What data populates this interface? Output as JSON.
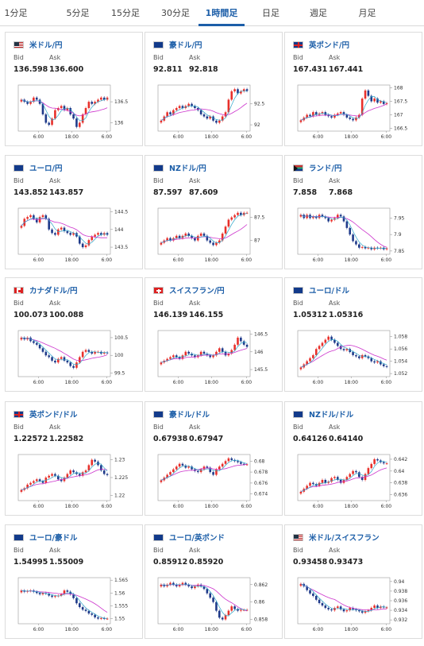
{
  "tabs": [
    {
      "label": "1分足",
      "active": false
    },
    {
      "label": "5分足",
      "active": false
    },
    {
      "label": "15分足",
      "active": false
    },
    {
      "label": "30分足",
      "active": false
    },
    {
      "label": "1時間足",
      "active": true
    },
    {
      "label": "日足",
      "active": false
    },
    {
      "label": "週足",
      "active": false
    },
    {
      "label": "月足",
      "active": false
    }
  ],
  "colors": {
    "accent": "#1c5ea8",
    "candle_up": "#e8302b",
    "candle_down": "#1f3a8a",
    "ma_short": "#2ea6c9",
    "ma_long": "#cc33cc",
    "volume_bar": "#888888"
  },
  "common": {
    "bid_label": "Bid",
    "ask_label": "Ask"
  },
  "cards": [
    {
      "pair": "米ドル/円",
      "flag": "us-flag",
      "bid": "136.598",
      "ask": "136.600",
      "chart_data": {
        "type": "candlestick",
        "x_ticks": [
          "6:00",
          "18:00",
          "6:00"
        ],
        "y_ticks": [
          "136.5",
          "136"
        ],
        "y_range": [
          135.8,
          136.9
        ],
        "closes": [
          136.55,
          136.5,
          136.45,
          136.5,
          136.6,
          136.55,
          136.45,
          136.2,
          136.0,
          135.95,
          136.1,
          136.3,
          136.35,
          136.4,
          136.3,
          136.35,
          136.2,
          136.1,
          135.9,
          136.0,
          136.2,
          136.35,
          136.5,
          136.45,
          136.5,
          136.55,
          136.6,
          136.55,
          136.6
        ]
      }
    },
    {
      "pair": "豪ドル/円",
      "flag": "au-flag",
      "bid": "92.811",
      "ask": "92.818",
      "chart_data": {
        "type": "candlestick",
        "x_ticks": [
          "6:00",
          "18:00",
          "6:00"
        ],
        "y_ticks": [
          "92.5",
          "92"
        ],
        "y_range": [
          91.85,
          92.95
        ],
        "closes": [
          92.1,
          92.2,
          92.3,
          92.25,
          92.35,
          92.4,
          92.45,
          92.4,
          92.45,
          92.5,
          92.45,
          92.4,
          92.35,
          92.25,
          92.2,
          92.15,
          92.2,
          92.1,
          92.05,
          92.1,
          92.2,
          92.3,
          92.6,
          92.8,
          92.85,
          92.75,
          92.8,
          92.85,
          92.81
        ]
      }
    },
    {
      "pair": "英ポンド/円",
      "flag": "uk-flag",
      "bid": "167.431",
      "ask": "167.441",
      "chart_data": {
        "type": "candlestick",
        "x_ticks": [
          "6:00",
          "18:00",
          "6:00"
        ],
        "y_ticks": [
          "168",
          "167.5",
          "167",
          "166.5"
        ],
        "y_range": [
          166.4,
          168.1
        ],
        "closes": [
          166.8,
          166.9,
          167.0,
          166.95,
          167.1,
          167.0,
          167.05,
          167.1,
          167.0,
          166.95,
          166.9,
          167.0,
          167.05,
          167.1,
          167.0,
          166.9,
          166.85,
          166.8,
          166.9,
          167.0,
          167.6,
          167.9,
          167.7,
          167.5,
          167.6,
          167.45,
          167.5,
          167.4,
          167.43
        ]
      }
    },
    {
      "pair": "ユーロ/円",
      "flag": "eu-flag",
      "bid": "143.852",
      "ask": "143.857",
      "chart_data": {
        "type": "candlestick",
        "x_ticks": [
          "6:00",
          "18:00",
          "6:00"
        ],
        "y_ticks": [
          "144.5",
          "144",
          "143.5"
        ],
        "y_range": [
          143.3,
          144.6
        ],
        "closes": [
          144.1,
          144.3,
          144.35,
          144.4,
          144.3,
          144.2,
          144.35,
          144.4,
          144.3,
          144.0,
          143.9,
          143.85,
          144.0,
          144.05,
          143.95,
          143.9,
          143.85,
          143.9,
          143.8,
          143.6,
          143.5,
          143.55,
          143.7,
          143.8,
          143.85,
          143.9,
          143.85,
          143.9,
          143.85
        ]
      }
    },
    {
      "pair": "NZドル/円",
      "flag": "nz-flag",
      "bid": "87.597",
      "ask": "87.609",
      "chart_data": {
        "type": "candlestick",
        "x_ticks": [
          "6:00",
          "18:00",
          "6:00"
        ],
        "y_ticks": [
          "87.5",
          "87"
        ],
        "y_range": [
          86.7,
          87.7
        ],
        "closes": [
          86.95,
          87.0,
          87.05,
          87.0,
          87.05,
          87.1,
          87.05,
          87.1,
          87.15,
          87.1,
          87.05,
          87.0,
          87.1,
          87.15,
          87.1,
          87.0,
          86.95,
          86.9,
          86.95,
          87.0,
          87.15,
          87.3,
          87.45,
          87.5,
          87.55,
          87.6,
          87.55,
          87.6,
          87.6
        ]
      }
    },
    {
      "pair": "ランド/円",
      "flag": "za-flag",
      "bid": "7.858",
      "ask": "7.868",
      "chart_data": {
        "type": "candlestick",
        "x_ticks": [
          "6:00",
          "18:00",
          "6:00"
        ],
        "y_ticks": [
          "7.95",
          "7.9",
          "7.85"
        ],
        "y_range": [
          7.84,
          7.98
        ],
        "closes": [
          7.96,
          7.95,
          7.96,
          7.95,
          7.955,
          7.95,
          7.96,
          7.955,
          7.95,
          7.94,
          7.945,
          7.95,
          7.96,
          7.955,
          7.94,
          7.92,
          7.9,
          7.88,
          7.87,
          7.86,
          7.862,
          7.858,
          7.86,
          7.855,
          7.86,
          7.858,
          7.86,
          7.855,
          7.858
        ]
      }
    },
    {
      "pair": "カナダドル/円",
      "flag": "ca-flag",
      "bid": "100.073",
      "ask": "100.088",
      "chart_data": {
        "type": "candlestick",
        "x_ticks": [
          "6:00",
          "18:00",
          "6:00"
        ],
        "y_ticks": [
          "100.5",
          "100",
          "99.5"
        ],
        "y_range": [
          99.4,
          100.7
        ],
        "closes": [
          100.5,
          100.45,
          100.5,
          100.4,
          100.35,
          100.3,
          100.2,
          100.1,
          100.0,
          99.95,
          99.85,
          99.8,
          99.9,
          99.95,
          99.85,
          99.8,
          99.7,
          99.65,
          99.8,
          99.95,
          100.1,
          100.15,
          100.1,
          100.05,
          100.1,
          100.1,
          100.05,
          100.08,
          100.07
        ]
      }
    },
    {
      "pair": "スイスフラン/円",
      "flag": "ch-flag",
      "bid": "146.139",
      "ask": "146.155",
      "chart_data": {
        "type": "candlestick",
        "x_ticks": [
          "6:00",
          "18:00",
          "6:00"
        ],
        "y_ticks": [
          "146.5",
          "146",
          "145.5"
        ],
        "y_range": [
          145.3,
          146.6
        ],
        "closes": [
          145.7,
          145.75,
          145.8,
          145.85,
          145.9,
          145.85,
          145.8,
          145.9,
          146.0,
          145.95,
          145.9,
          145.85,
          145.9,
          146.0,
          145.95,
          145.9,
          145.85,
          145.9,
          146.0,
          146.1,
          146.0,
          145.9,
          145.95,
          146.05,
          146.2,
          146.4,
          146.3,
          146.2,
          146.14
        ]
      }
    },
    {
      "pair": "ユーロ/ドル",
      "flag": "eu-flag-2",
      "bid": "1.05312",
      "ask": "1.05316",
      "chart_data": {
        "type": "candlestick",
        "x_ticks": [
          "6:00",
          "18:00",
          "6:00"
        ],
        "y_ticks": [
          "1.058",
          "1.056",
          "1.054",
          "1.052"
        ],
        "y_range": [
          1.0515,
          1.059
        ],
        "closes": [
          1.053,
          1.0535,
          1.054,
          1.0545,
          1.055,
          1.056,
          1.0565,
          1.057,
          1.0575,
          1.058,
          1.0575,
          1.057,
          1.0565,
          1.056,
          1.0558,
          1.056,
          1.0555,
          1.055,
          1.0548,
          1.0545,
          1.055,
          1.0548,
          1.0545,
          1.054,
          1.0538,
          1.054,
          1.0535,
          1.0532,
          1.0531
        ]
      }
    },
    {
      "pair": "英ポンド/ドル",
      "flag": "uk-flag-2",
      "bid": "1.22572",
      "ask": "1.22582",
      "chart_data": {
        "type": "candlestick",
        "x_ticks": [
          "6:00",
          "18:00",
          "6:00"
        ],
        "y_ticks": [
          "1.23",
          "1.225",
          "1.22"
        ],
        "y_range": [
          1.2185,
          1.2315
        ],
        "closes": [
          1.2215,
          1.222,
          1.223,
          1.2235,
          1.224,
          1.2245,
          1.224,
          1.2235,
          1.225,
          1.2255,
          1.226,
          1.2255,
          1.2245,
          1.224,
          1.225,
          1.226,
          1.227,
          1.2265,
          1.226,
          1.2255,
          1.2265,
          1.227,
          1.2285,
          1.23,
          1.2295,
          1.2285,
          1.227,
          1.226,
          1.2257
        ]
      }
    },
    {
      "pair": "豪ドル/ドル",
      "flag": "au-flag-2",
      "bid": "0.67938",
      "ask": "0.67947",
      "chart_data": {
        "type": "candlestick",
        "x_ticks": [
          "6:00",
          "18:00",
          "6:00"
        ],
        "y_ticks": [
          "0.68",
          "0.678",
          "0.676",
          "0.674"
        ],
        "y_range": [
          0.6728,
          0.6812
        ],
        "closes": [
          0.6765,
          0.677,
          0.6775,
          0.678,
          0.6785,
          0.679,
          0.6795,
          0.6792,
          0.6788,
          0.679,
          0.6785,
          0.6782,
          0.678,
          0.6785,
          0.679,
          0.6788,
          0.678,
          0.6775,
          0.6785,
          0.679,
          0.6795,
          0.68,
          0.6805,
          0.6802,
          0.68,
          0.6798,
          0.6795,
          0.6794,
          0.6794
        ]
      }
    },
    {
      "pair": "NZドル/ドル",
      "flag": "nz-flag-2",
      "bid": "0.64126",
      "ask": "0.64140",
      "chart_data": {
        "type": "candlestick",
        "x_ticks": [
          "6:00",
          "18:00",
          "6:00"
        ],
        "y_ticks": [
          "0.642",
          "0.64",
          "0.638",
          "0.636"
        ],
        "y_range": [
          0.635,
          0.6428
        ],
        "closes": [
          0.6365,
          0.637,
          0.6375,
          0.638,
          0.6378,
          0.6375,
          0.638,
          0.6385,
          0.638,
          0.6382,
          0.6388,
          0.639,
          0.6385,
          0.638,
          0.6385,
          0.639,
          0.6395,
          0.64,
          0.6398,
          0.639,
          0.6385,
          0.6395,
          0.6405,
          0.6412,
          0.642,
          0.6418,
          0.6415,
          0.6413,
          0.6413
        ]
      }
    },
    {
      "pair": "ユーロ/豪ドル",
      "flag": "eu-flag-3",
      "bid": "1.54995",
      "ask": "1.55009",
      "chart_data": {
        "type": "candlestick",
        "x_ticks": [
          "6:00",
          "18:00",
          "6:00"
        ],
        "y_ticks": [
          "1.565",
          "1.56",
          "1.555",
          "1.55"
        ],
        "y_range": [
          1.548,
          1.566
        ],
        "closes": [
          1.561,
          1.5605,
          1.5608,
          1.561,
          1.5605,
          1.56,
          1.5595,
          1.56,
          1.5598,
          1.559,
          1.5585,
          1.5588,
          1.559,
          1.5595,
          1.561,
          1.5605,
          1.5595,
          1.558,
          1.556,
          1.5545,
          1.5535,
          1.553,
          1.552,
          1.5515,
          1.5505,
          1.55,
          1.5502,
          1.55,
          1.55
        ]
      }
    },
    {
      "pair": "ユーロ/英ポンド",
      "flag": "eu-flag-4",
      "bid": "0.85912",
      "ask": "0.85920",
      "chart_data": {
        "type": "candlestick",
        "x_ticks": [
          "6:00",
          "18:00",
          "6:00"
        ],
        "y_ticks": [
          "0.862",
          "0.86",
          "0.858"
        ],
        "y_range": [
          0.8575,
          0.8628
        ],
        "closes": [
          0.862,
          0.8618,
          0.862,
          0.8622,
          0.862,
          0.8618,
          0.862,
          0.8622,
          0.862,
          0.8618,
          0.8616,
          0.8618,
          0.862,
          0.8618,
          0.8615,
          0.861,
          0.8605,
          0.86,
          0.859,
          0.8582,
          0.858,
          0.8585,
          0.859,
          0.8595,
          0.8592,
          0.859,
          0.8591,
          0.8591,
          0.8591
        ]
      }
    },
    {
      "pair": "米ドル/スイスフラン",
      "flag": "us-flag-2",
      "bid": "0.93458",
      "ask": "0.93473",
      "chart_data": {
        "type": "candlestick",
        "x_ticks": [
          "6:00",
          "18:00",
          "6:00"
        ],
        "y_ticks": [
          "0.94",
          "0.938",
          "0.936",
          "0.934",
          "0.932"
        ],
        "y_range": [
          0.9312,
          0.9408
        ],
        "closes": [
          0.9395,
          0.939,
          0.9382,
          0.9375,
          0.937,
          0.9362,
          0.9355,
          0.935,
          0.9345,
          0.9342,
          0.934,
          0.9345,
          0.9348,
          0.9342,
          0.9338,
          0.934,
          0.9345,
          0.9342,
          0.934,
          0.9338,
          0.9335,
          0.9338,
          0.934,
          0.9345,
          0.935,
          0.9345,
          0.9348,
          0.9346,
          0.9346
        ]
      }
    }
  ]
}
